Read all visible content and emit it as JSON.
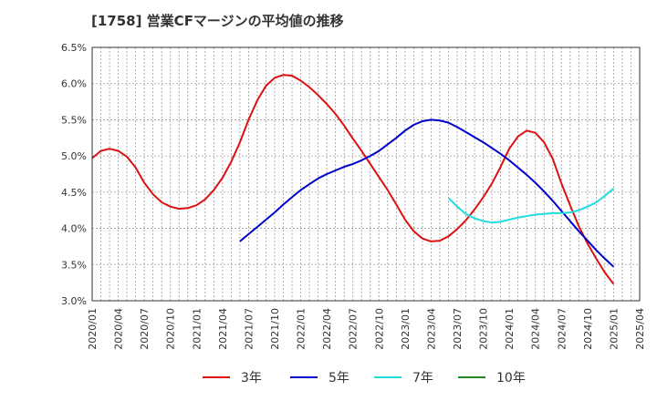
{
  "chart_data": {
    "type": "line",
    "title": "[1758]  営業CFマージンの平均値の推移",
    "xlabel": "",
    "ylabel": "",
    "y_unit": "%",
    "ylim": [
      3.0,
      6.5
    ],
    "yticks": [
      3.0,
      3.5,
      4.0,
      4.5,
      5.0,
      5.5,
      6.0,
      6.5
    ],
    "ytick_labels": [
      "3.0%",
      "3.5%",
      "4.0%",
      "4.5%",
      "5.0%",
      "5.5%",
      "6.0%",
      "6.5%"
    ],
    "xticks": [
      "2020/01",
      "2020/04",
      "2020/07",
      "2020/10",
      "2021/01",
      "2021/04",
      "2021/07",
      "2021/10",
      "2022/01",
      "2022/04",
      "2022/07",
      "2022/10",
      "2023/01",
      "2023/04",
      "2023/07",
      "2023/10",
      "2024/01",
      "2024/04",
      "2024/07",
      "2024/10",
      "2025/01",
      "2025/04"
    ],
    "grid": true,
    "legend_position": "bottom",
    "series": [
      {
        "name": "3年",
        "color": "#dd1111",
        "points": [
          [
            "2020/01",
            4.97
          ],
          [
            "2020/02",
            5.07
          ],
          [
            "2020/03",
            5.1
          ],
          [
            "2020/04",
            5.07
          ],
          [
            "2020/05",
            4.99
          ],
          [
            "2020/06",
            4.84
          ],
          [
            "2020/07",
            4.63
          ],
          [
            "2020/08",
            4.47
          ],
          [
            "2020/09",
            4.36
          ],
          [
            "2020/10",
            4.3
          ],
          [
            "2020/11",
            4.27
          ],
          [
            "2020/12",
            4.28
          ],
          [
            "2021/01",
            4.32
          ],
          [
            "2021/02",
            4.4
          ],
          [
            "2021/03",
            4.53
          ],
          [
            "2021/04",
            4.7
          ],
          [
            "2021/05",
            4.92
          ],
          [
            "2021/06",
            5.19
          ],
          [
            "2021/07",
            5.5
          ],
          [
            "2021/08",
            5.77
          ],
          [
            "2021/09",
            5.97
          ],
          [
            "2021/10",
            6.08
          ],
          [
            "2021/11",
            6.12
          ],
          [
            "2021/12",
            6.11
          ],
          [
            "2022/01",
            6.04
          ],
          [
            "2022/02",
            5.95
          ],
          [
            "2022/03",
            5.84
          ],
          [
            "2022/04",
            5.72
          ],
          [
            "2022/05",
            5.58
          ],
          [
            "2022/06",
            5.42
          ],
          [
            "2022/07",
            5.24
          ],
          [
            "2022/08",
            5.07
          ],
          [
            "2022/09",
            4.89
          ],
          [
            "2022/10",
            4.71
          ],
          [
            "2022/11",
            4.53
          ],
          [
            "2022/12",
            4.33
          ],
          [
            "2023/01",
            4.12
          ],
          [
            "2023/02",
            3.96
          ],
          [
            "2023/03",
            3.86
          ],
          [
            "2023/04",
            3.82
          ],
          [
            "2023/05",
            3.83
          ],
          [
            "2023/06",
            3.89
          ],
          [
            "2023/07",
            3.99
          ],
          [
            "2023/08",
            4.11
          ],
          [
            "2023/09",
            4.26
          ],
          [
            "2023/10",
            4.43
          ],
          [
            "2023/11",
            4.62
          ],
          [
            "2023/12",
            4.85
          ],
          [
            "2024/01",
            5.1
          ],
          [
            "2024/02",
            5.27
          ],
          [
            "2024/03",
            5.35
          ],
          [
            "2024/04",
            5.32
          ],
          [
            "2024/05",
            5.19
          ],
          [
            "2024/06",
            4.96
          ],
          [
            "2024/07",
            4.62
          ],
          [
            "2024/08",
            4.32
          ],
          [
            "2024/09",
            4.03
          ],
          [
            "2024/10",
            3.79
          ],
          [
            "2024/11",
            3.58
          ],
          [
            "2024/12",
            3.39
          ],
          [
            "2025/01",
            3.23
          ]
        ]
      },
      {
        "name": "5年",
        "color": "#0000cc",
        "points": [
          [
            "2021/06",
            3.82
          ],
          [
            "2021/07",
            3.92
          ],
          [
            "2021/08",
            4.02
          ],
          [
            "2021/09",
            4.12
          ],
          [
            "2021/10",
            4.22
          ],
          [
            "2021/11",
            4.33
          ],
          [
            "2021/12",
            4.43
          ],
          [
            "2022/01",
            4.53
          ],
          [
            "2022/02",
            4.61
          ],
          [
            "2022/03",
            4.69
          ],
          [
            "2022/04",
            4.75
          ],
          [
            "2022/05",
            4.8
          ],
          [
            "2022/06",
            4.85
          ],
          [
            "2022/07",
            4.89
          ],
          [
            "2022/08",
            4.94
          ],
          [
            "2022/09",
            5.0
          ],
          [
            "2022/10",
            5.07
          ],
          [
            "2022/11",
            5.16
          ],
          [
            "2022/12",
            5.25
          ],
          [
            "2023/01",
            5.35
          ],
          [
            "2023/02",
            5.43
          ],
          [
            "2023/03",
            5.48
          ],
          [
            "2023/04",
            5.5
          ],
          [
            "2023/05",
            5.49
          ],
          [
            "2023/06",
            5.46
          ],
          [
            "2023/07",
            5.4
          ],
          [
            "2023/08",
            5.33
          ],
          [
            "2023/09",
            5.26
          ],
          [
            "2023/10",
            5.19
          ],
          [
            "2023/11",
            5.11
          ],
          [
            "2023/12",
            5.03
          ],
          [
            "2024/01",
            4.94
          ],
          [
            "2024/02",
            4.84
          ],
          [
            "2024/03",
            4.74
          ],
          [
            "2024/04",
            4.63
          ],
          [
            "2024/05",
            4.51
          ],
          [
            "2024/06",
            4.38
          ],
          [
            "2024/07",
            4.24
          ],
          [
            "2024/08",
            4.1
          ],
          [
            "2024/09",
            3.96
          ],
          [
            "2024/10",
            3.83
          ],
          [
            "2024/11",
            3.7
          ],
          [
            "2024/12",
            3.58
          ],
          [
            "2025/01",
            3.47
          ]
        ]
      },
      {
        "name": "7年",
        "color": "#22dddd",
        "points": [
          [
            "2023/06",
            4.42
          ],
          [
            "2023/07",
            4.3
          ],
          [
            "2023/08",
            4.2
          ],
          [
            "2023/09",
            4.14
          ],
          [
            "2023/10",
            4.1
          ],
          [
            "2023/11",
            4.08
          ],
          [
            "2023/12",
            4.09
          ],
          [
            "2024/01",
            4.12
          ],
          [
            "2024/02",
            4.15
          ],
          [
            "2024/03",
            4.17
          ],
          [
            "2024/04",
            4.19
          ],
          [
            "2024/05",
            4.2
          ],
          [
            "2024/06",
            4.21
          ],
          [
            "2024/07",
            4.21
          ],
          [
            "2024/08",
            4.22
          ],
          [
            "2024/09",
            4.25
          ],
          [
            "2024/10",
            4.3
          ],
          [
            "2024/11",
            4.36
          ],
          [
            "2024/12",
            4.45
          ],
          [
            "2025/01",
            4.55
          ]
        ]
      },
      {
        "name": "10年",
        "color": "#228822",
        "points": []
      }
    ]
  }
}
